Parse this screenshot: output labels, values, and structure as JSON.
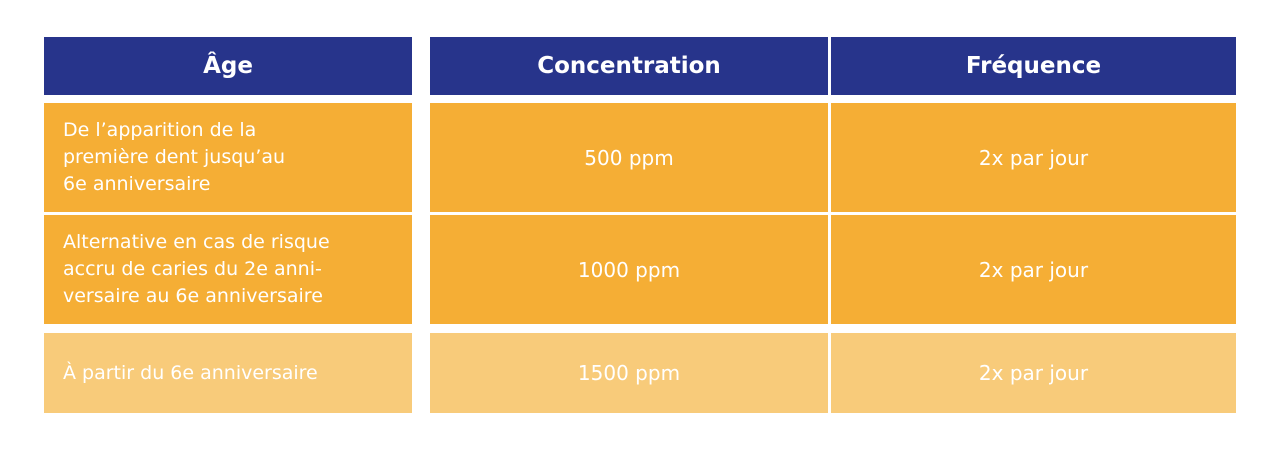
{
  "table": {
    "header": [
      "Âge",
      "Concentration",
      "Fréquence"
    ],
    "rows": [
      [
        [
          "De l’apparition de la",
          "première dent jusqu’au",
          "6e anniversaire"
        ],
        "500 ppm",
        "2x par jour"
      ],
      [
        [
          "Alternative en cas de risque",
          "accru de caries du 2e anni-",
          "versaire au 6e anniversaire"
        ],
        "1000 ppm",
        "2x par jour"
      ],
      [
        [
          "À partir du 6e anniversaire"
        ],
        "1500 ppm",
        "2x par jour"
      ]
    ]
  }
}
